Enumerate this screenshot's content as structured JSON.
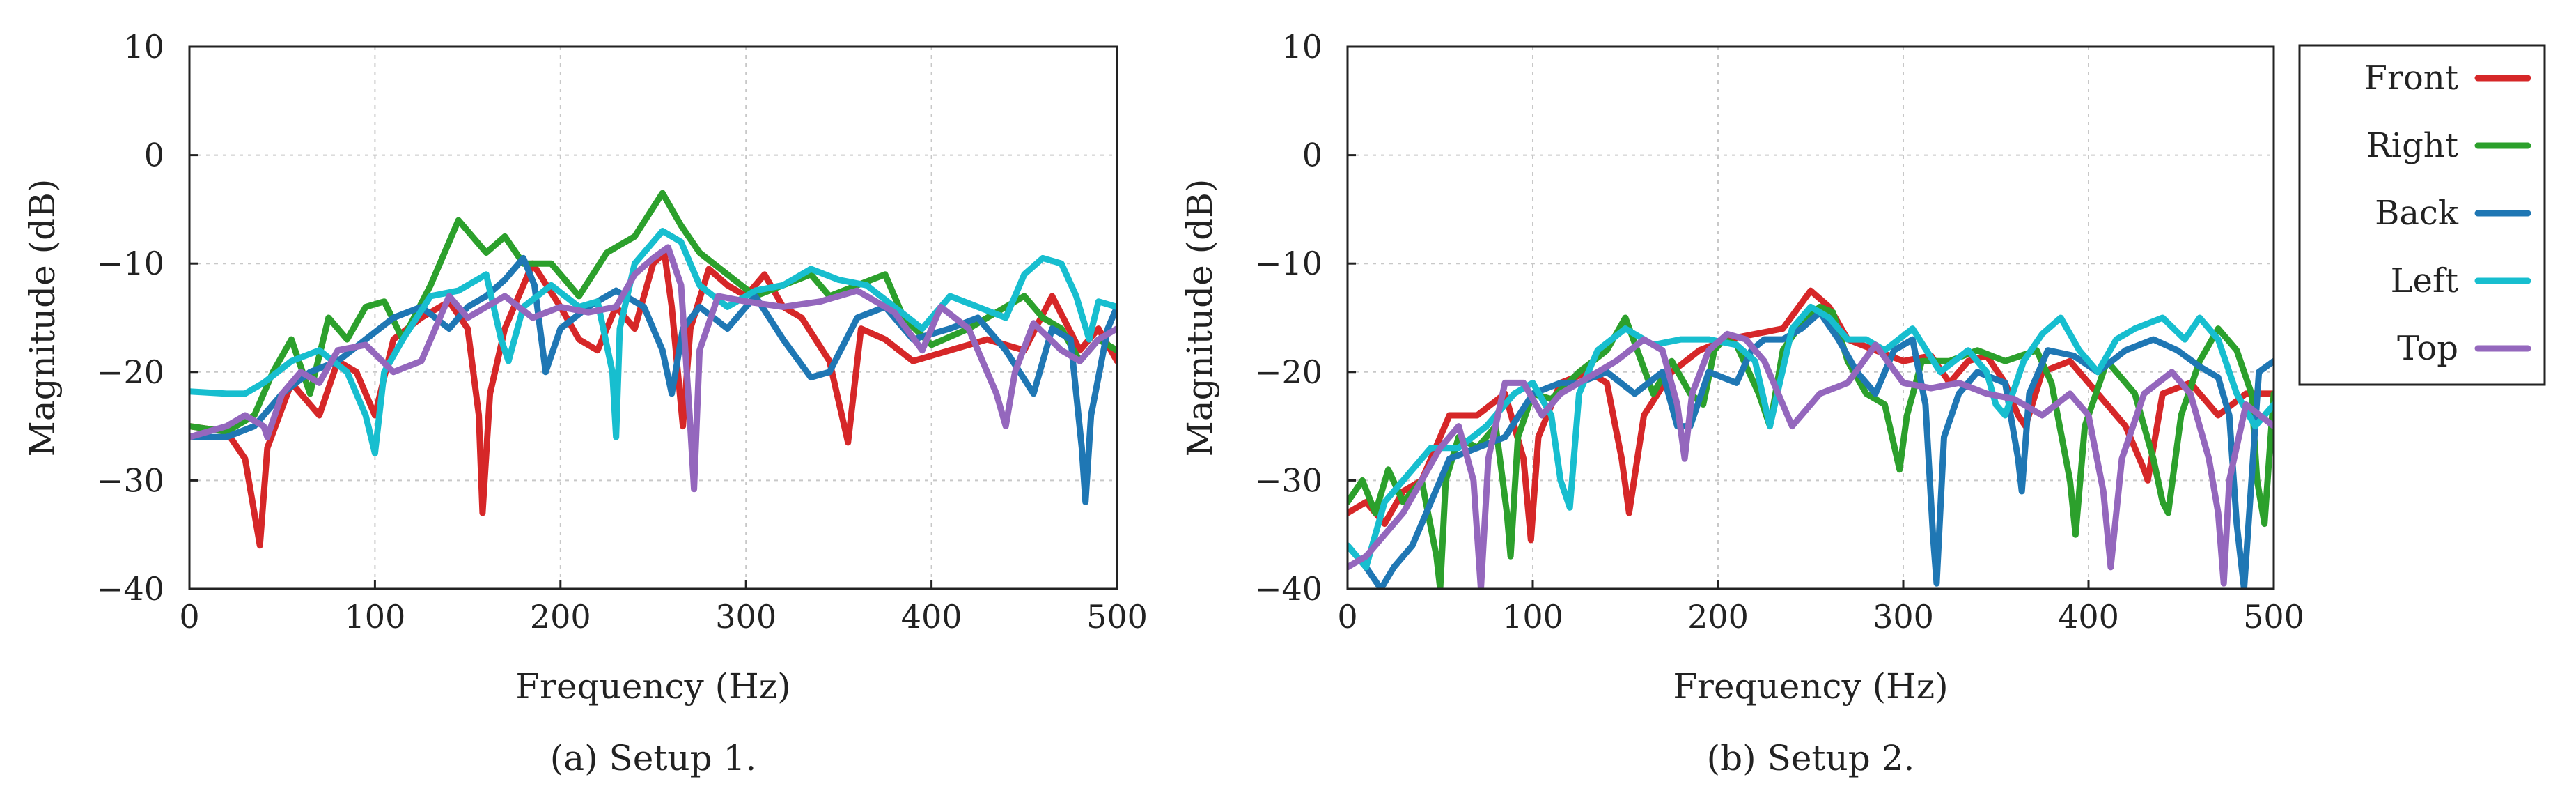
{
  "chart_data": [
    {
      "type": "line",
      "caption": "(a) Setup 1.",
      "xlabel": "Frequency (Hz)",
      "ylabel": "Magnitude (dB)",
      "xlim": [
        0,
        500
      ],
      "ylim": [
        -40,
        10
      ],
      "xticks": [
        0,
        100,
        200,
        300,
        400,
        500
      ],
      "yticks": [
        -40,
        -30,
        -20,
        -10,
        0,
        10
      ],
      "xtick_labels": [
        "0",
        "100",
        "200",
        "300",
        "400",
        "500"
      ],
      "ytick_labels": [
        "−40",
        "−30",
        "−20",
        "−10",
        "0",
        "10"
      ],
      "grid": true,
      "series": [
        {
          "name": "Front",
          "color": "#d62728",
          "x": [
            0,
            20,
            30,
            36,
            38,
            42,
            55,
            70,
            80,
            90,
            100,
            110,
            125,
            140,
            150,
            156,
            158,
            162,
            170,
            185,
            200,
            210,
            220,
            230,
            240,
            250,
            256,
            260,
            266,
            270,
            280,
            290,
            300,
            310,
            320,
            330,
            345,
            355,
            358,
            362,
            375,
            390,
            410,
            430,
            450,
            465,
            480,
            490,
            500
          ],
          "y": [
            -25,
            -25.5,
            -28,
            -34,
            -36,
            -27,
            -21,
            -24,
            -19,
            -20,
            -24,
            -17,
            -15,
            -13.5,
            -16,
            -24,
            -33,
            -22,
            -16,
            -10,
            -14,
            -17,
            -18,
            -14,
            -16,
            -10,
            -9,
            -14,
            -25,
            -16,
            -10.5,
            -12,
            -13,
            -11,
            -14,
            -15,
            -19,
            -26.5,
            -22,
            -16,
            -17,
            -19,
            -18,
            -17,
            -18,
            -13,
            -18,
            -16,
            -19
          ]
        },
        {
          "name": "Right",
          "color": "#2ca02c",
          "x": [
            0,
            20,
            35,
            45,
            55,
            65,
            75,
            85,
            95,
            105,
            115,
            130,
            145,
            155,
            160,
            170,
            180,
            195,
            210,
            225,
            240,
            255,
            265,
            275,
            290,
            305,
            320,
            335,
            345,
            360,
            375,
            385,
            400,
            420,
            440,
            450,
            460,
            470,
            480,
            490,
            500
          ],
          "y": [
            -25,
            -25.5,
            -24,
            -20,
            -17,
            -22,
            -15,
            -17,
            -14,
            -13.5,
            -17,
            -12,
            -6,
            -8,
            -9,
            -7.5,
            -10,
            -10,
            -13,
            -9,
            -7.5,
            -3.5,
            -6.5,
            -9,
            -11,
            -13,
            -12,
            -11,
            -13,
            -12,
            -11,
            -15,
            -17.5,
            -16,
            -14,
            -13,
            -15,
            -16,
            -19,
            -17,
            -18
          ]
        },
        {
          "name": "Back",
          "color": "#1f77b4",
          "x": [
            0,
            20,
            35,
            50,
            65,
            80,
            95,
            110,
            125,
            140,
            150,
            160,
            170,
            180,
            186,
            192,
            200,
            215,
            230,
            245,
            255,
            260,
            262,
            266,
            275,
            290,
            305,
            320,
            335,
            345,
            360,
            375,
            390,
            410,
            425,
            440,
            455,
            465,
            475,
            481,
            483,
            486,
            495,
            500
          ],
          "y": [
            -26,
            -26,
            -25,
            -22,
            -20,
            -19,
            -17,
            -15,
            -14,
            -16,
            -14,
            -13,
            -11.5,
            -9.5,
            -12,
            -20,
            -16,
            -14,
            -12.5,
            -14,
            -18,
            -22,
            -20,
            -16,
            -14,
            -16,
            -13,
            -17,
            -20.5,
            -20,
            -15,
            -14,
            -17,
            -16,
            -15,
            -18,
            -22,
            -16,
            -17,
            -27,
            -32,
            -24,
            -16,
            -14
          ]
        },
        {
          "name": "Left",
          "color": "#17becf",
          "x": [
            0,
            20,
            30,
            40,
            55,
            70,
            85,
            95,
            100,
            105,
            115,
            130,
            145,
            160,
            168,
            172,
            180,
            195,
            210,
            220,
            228,
            230,
            232,
            240,
            255,
            265,
            275,
            290,
            305,
            320,
            335,
            350,
            365,
            380,
            395,
            410,
            425,
            440,
            450,
            460,
            470,
            478,
            485,
            490,
            500
          ],
          "y": [
            -21.8,
            -22,
            -22,
            -21,
            -19,
            -18,
            -20,
            -24,
            -27.5,
            -20,
            -17,
            -13,
            -12.5,
            -11,
            -17,
            -19,
            -14,
            -12,
            -14,
            -13.5,
            -20,
            -26,
            -16,
            -10,
            -7,
            -8,
            -12,
            -14,
            -12.5,
            -12,
            -10.5,
            -11.5,
            -12,
            -14,
            -16,
            -13,
            -14,
            -15,
            -11,
            -9.5,
            -10,
            -13,
            -17,
            -13.5,
            -14
          ]
        },
        {
          "name": "Top",
          "color": "#9467bd",
          "x": [
            0,
            20,
            30,
            40,
            42,
            50,
            60,
            70,
            80,
            95,
            110,
            125,
            140,
            150,
            160,
            170,
            185,
            200,
            215,
            230,
            240,
            250,
            258,
            265,
            270,
            272,
            275,
            285,
            300,
            320,
            340,
            360,
            380,
            395,
            405,
            420,
            435,
            440,
            445,
            455,
            470,
            480,
            490,
            500
          ],
          "y": [
            -26,
            -25,
            -24,
            -25,
            -26,
            -22,
            -20,
            -21,
            -18,
            -17.5,
            -20,
            -19,
            -13,
            -15,
            -14,
            -13,
            -15,
            -14,
            -14.5,
            -14,
            -11,
            -9.5,
            -8.5,
            -12,
            -25,
            -30.8,
            -18,
            -13,
            -13.5,
            -14,
            -13.5,
            -12.5,
            -14.5,
            -18,
            -14,
            -16,
            -22,
            -25,
            -20,
            -15.5,
            -18,
            -19,
            -17,
            -16
          ]
        }
      ]
    },
    {
      "type": "line",
      "caption": "(b) Setup 2.",
      "xlabel": "Frequency (Hz)",
      "ylabel": "Magnitude (dB)",
      "xlim": [
        0,
        500
      ],
      "ylim": [
        -40,
        10
      ],
      "xticks": [
        0,
        100,
        200,
        300,
        400,
        500
      ],
      "yticks": [
        -40,
        -30,
        -20,
        -10,
        0,
        10
      ],
      "xtick_labels": [
        "0",
        "100",
        "200",
        "300",
        "400",
        "500"
      ],
      "ytick_labels": [
        "−40",
        "−30",
        "−20",
        "−10",
        "0",
        "10"
      ],
      "grid": true,
      "series": [
        {
          "name": "Front",
          "color": "#d62728",
          "x": [
            0,
            10,
            20,
            30,
            40,
            55,
            70,
            85,
            95,
            99,
            103,
            115,
            130,
            140,
            148,
            152,
            160,
            175,
            190,
            205,
            220,
            235,
            250,
            260,
            270,
            285,
            300,
            315,
            325,
            335,
            345,
            355,
            362,
            366,
            375,
            390,
            405,
            420,
            430,
            432,
            440,
            455,
            470,
            485,
            500
          ],
          "y": [
            -33,
            -32,
            -34,
            -31,
            -30,
            -24,
            -24,
            -22,
            -28,
            -35.5,
            -26,
            -21,
            -20,
            -21,
            -28,
            -33,
            -24,
            -20,
            -18,
            -17,
            -16.5,
            -16,
            -12.5,
            -14,
            -17,
            -18,
            -19,
            -18.5,
            -21,
            -19,
            -18.5,
            -21,
            -24,
            -25,
            -20,
            -19,
            -22,
            -25,
            -29,
            -30,
            -22,
            -21,
            -24,
            -22,
            -22
          ]
        },
        {
          "name": "Right",
          "color": "#2ca02c",
          "x": [
            0,
            8,
            15,
            22,
            30,
            40,
            48,
            50,
            53,
            60,
            70,
            80,
            86,
            88,
            92,
            100,
            110,
            125,
            140,
            150,
            165,
            175,
            185,
            192,
            198,
            203,
            210,
            222,
            228,
            235,
            245,
            255,
            262,
            270,
            280,
            290,
            298,
            302,
            310,
            325,
            340,
            355,
            372,
            380,
            390,
            393,
            398,
            410,
            425,
            435,
            440,
            443,
            450,
            460,
            470,
            480,
            488,
            491,
            495,
            500
          ],
          "y": [
            -32,
            -30,
            -33,
            -29,
            -32,
            -30,
            -37,
            -40,
            -30,
            -26,
            -27,
            -25,
            -33,
            -37,
            -26,
            -22,
            -22.5,
            -20,
            -18,
            -15,
            -22,
            -19,
            -22,
            -23,
            -18,
            -17,
            -17.5,
            -22,
            -25,
            -18,
            -15.5,
            -14,
            -14.5,
            -19,
            -22,
            -23,
            -29,
            -24,
            -19,
            -19,
            -18,
            -19,
            -18,
            -21,
            -30,
            -35,
            -25,
            -19,
            -22,
            -28,
            -32,
            -33,
            -24,
            -19,
            -16,
            -18,
            -22,
            -30,
            -34,
            -22
          ]
        },
        {
          "name": "Back",
          "color": "#1f77b4",
          "x": [
            0,
            10,
            18,
            25,
            35,
            45,
            55,
            70,
            85,
            100,
            115,
            125,
            140,
            155,
            170,
            178,
            185,
            195,
            210,
            218,
            225,
            235,
            245,
            255,
            265,
            275,
            285,
            295,
            305,
            312,
            316,
            318,
            322,
            330,
            340,
            355,
            362,
            364,
            368,
            378,
            392,
            405,
            420,
            435,
            448,
            460,
            470,
            476,
            480,
            484,
            492,
            500
          ],
          "y": [
            -36,
            -38,
            -40,
            -38,
            -36,
            -32,
            -28,
            -27,
            -26,
            -22,
            -21,
            -21,
            -20,
            -22,
            -20,
            -25,
            -25,
            -20,
            -21,
            -18,
            -17,
            -17,
            -16,
            -14.5,
            -17,
            -20,
            -22,
            -18,
            -17,
            -23,
            -35,
            -39.5,
            -26,
            -22,
            -20,
            -21,
            -28,
            -31,
            -22,
            -18,
            -18.5,
            -20,
            -18,
            -17,
            -18,
            -19.5,
            -20.5,
            -24,
            -34,
            -40,
            -20,
            -19
          ]
        },
        {
          "name": "Left",
          "color": "#17becf",
          "x": [
            0,
            10,
            20,
            30,
            45,
            60,
            75,
            90,
            100,
            110,
            115,
            120,
            125,
            135,
            150,
            165,
            180,
            195,
            210,
            220,
            228,
            232,
            240,
            250,
            260,
            270,
            280,
            290,
            305,
            320,
            335,
            345,
            350,
            355,
            365,
            375,
            385,
            395,
            405,
            415,
            425,
            440,
            452,
            460,
            470,
            480,
            490,
            500
          ],
          "y": [
            -36,
            -38,
            -32,
            -30,
            -27,
            -27,
            -25,
            -22,
            -21,
            -24,
            -30,
            -32.5,
            -22,
            -18,
            -16,
            -17.5,
            -17,
            -17,
            -17.5,
            -19,
            -25,
            -22,
            -16,
            -14,
            -15,
            -17,
            -17,
            -18,
            -16,
            -20,
            -18,
            -20,
            -23,
            -24,
            -19,
            -16.5,
            -15,
            -18,
            -20,
            -17,
            -16,
            -15,
            -17,
            -15,
            -17,
            -22,
            -25,
            -23
          ]
        },
        {
          "name": "Top",
          "color": "#9467bd",
          "x": [
            0,
            10,
            20,
            30,
            40,
            50,
            60,
            68,
            72,
            76,
            85,
            95,
            105,
            115,
            130,
            145,
            160,
            170,
            178,
            182,
            186,
            195,
            205,
            215,
            225,
            240,
            255,
            270,
            285,
            300,
            315,
            330,
            345,
            360,
            375,
            390,
            400,
            408,
            412,
            418,
            430,
            445,
            455,
            465,
            470,
            473,
            476,
            485,
            500
          ],
          "y": [
            -38,
            -37,
            -35,
            -33,
            -30,
            -27,
            -25,
            -30,
            -40,
            -28,
            -21,
            -21,
            -24,
            -22,
            -20.5,
            -19,
            -17,
            -18,
            -23,
            -28,
            -22,
            -18,
            -16.5,
            -17,
            -19,
            -25,
            -22,
            -21,
            -17.5,
            -21,
            -21.5,
            -21,
            -22,
            -22.5,
            -24,
            -22,
            -24,
            -31,
            -38,
            -28,
            -22,
            -20,
            -22,
            -28,
            -33,
            -39.5,
            -30,
            -23,
            -25
          ]
        }
      ]
    }
  ],
  "legend": {
    "placement": "right",
    "entries": [
      {
        "label": "Front",
        "color": "#d62728"
      },
      {
        "label": "Right",
        "color": "#2ca02c"
      },
      {
        "label": "Back",
        "color": "#1f77b4"
      },
      {
        "label": "Left",
        "color": "#17becf"
      },
      {
        "label": "Top",
        "color": "#9467bd"
      }
    ]
  }
}
